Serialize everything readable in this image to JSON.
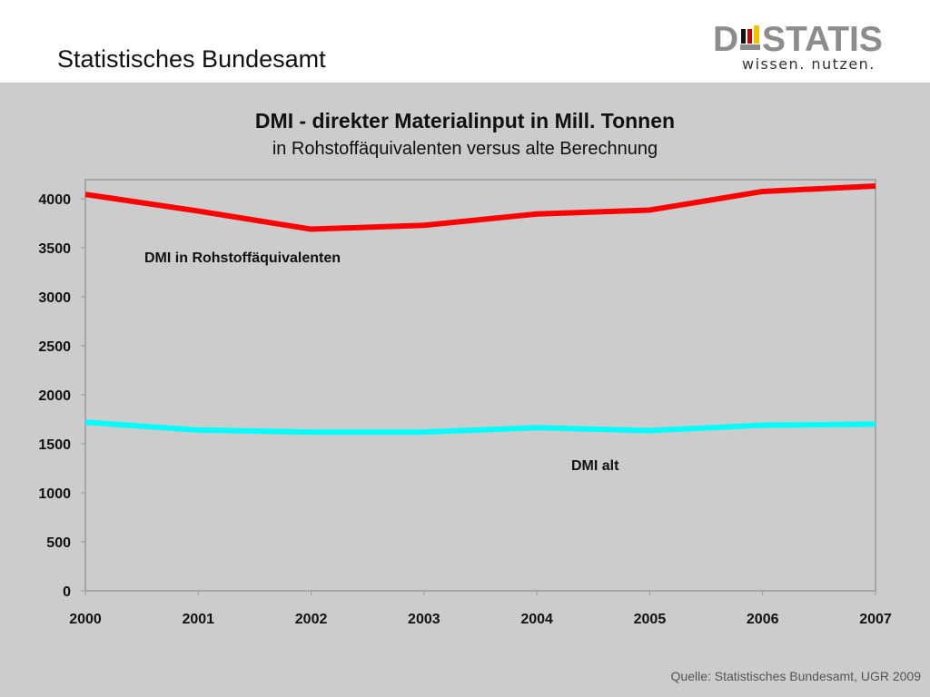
{
  "header": {
    "title": "Statistisches Bundesamt",
    "logo_text": "D STATIS",
    "logo_sub": "wissen. nutzen."
  },
  "chart_data": {
    "type": "line",
    "title": "DMI - direkter Materialinput in Mill. Tonnen",
    "subtitle": "in Rohstoffäquivalenten versus alte Berechnung",
    "xlabel": "",
    "ylabel": "",
    "x": [
      "2000",
      "2001",
      "2002",
      "2003",
      "2004",
      "2005",
      "2006",
      "2007"
    ],
    "ylim": [
      0,
      4000
    ],
    "yticks": [
      "0",
      "500",
      "1000",
      "1500",
      "2000",
      "2500",
      "3000",
      "3500",
      "4000"
    ],
    "grid": false,
    "series": [
      {
        "name": "DMI in Rohstoffäquivalenten",
        "color": "#ff0000",
        "values": [
          4045,
          3875,
          3690,
          3730,
          3845,
          3885,
          4075,
          4130
        ]
      },
      {
        "name": "DMI alt",
        "color": "#00ffff",
        "values": [
          1720,
          1640,
          1620,
          1620,
          1665,
          1635,
          1690,
          1700
        ]
      }
    ]
  },
  "footer": {
    "source": "Quelle: Statistisches Bundesamt, UGR 2009"
  }
}
